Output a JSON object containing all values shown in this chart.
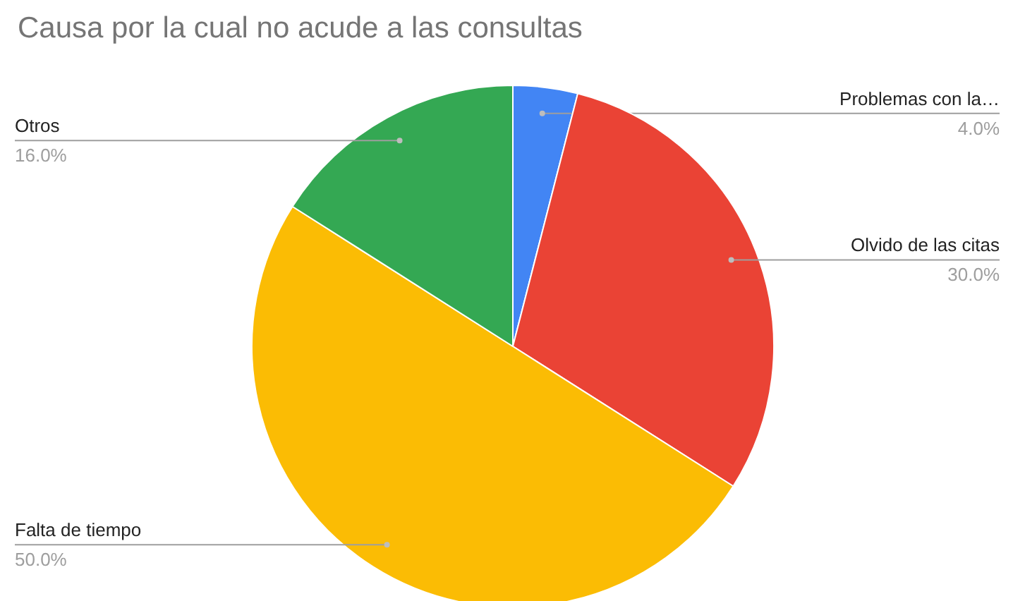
{
  "chart_data": {
    "type": "pie",
    "title": "Causa por la cual no acude a las consultas",
    "categories": [
      "Problemas con la…",
      "Olvido de las citas",
      "Falta de tiempo",
      "Otros"
    ],
    "values": [
      4,
      30,
      50,
      16
    ],
    "colors": [
      "#4285f4",
      "#ea4335",
      "#fbbc04",
      "#34a853"
    ],
    "value_labels": [
      "4.0%",
      "30.0%",
      "50.0%",
      "16.0%"
    ]
  }
}
